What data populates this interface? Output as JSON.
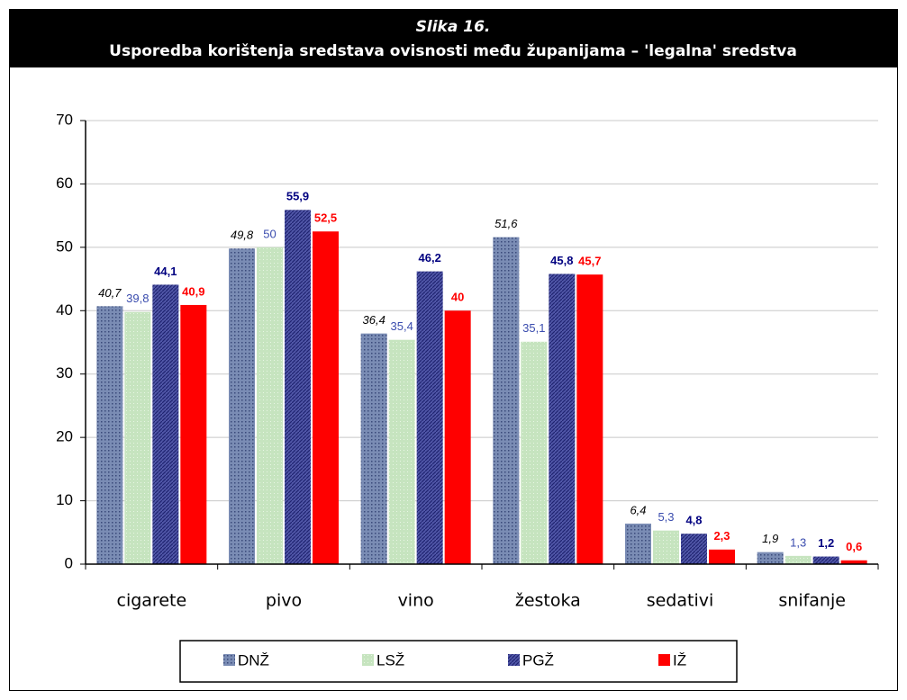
{
  "chart_data": {
    "type": "bar",
    "title": "Slika 16.",
    "subtitle": "Usporedba korištenja sredstava ovisnosti među županijama – 'legalna' sredstva",
    "categories": [
      "cigarete",
      "pivo",
      "vino",
      "žestoka",
      "sedativi",
      "snifanje"
    ],
    "series": [
      {
        "name": "DNŽ",
        "color": "#7a8cb4",
        "values": [
          40.7,
          49.8,
          36.4,
          51.6,
          6.4,
          1.9
        ],
        "value_labels": [
          "40,7",
          "49,8",
          "36,4",
          "51,6",
          "6,4",
          "1,9"
        ]
      },
      {
        "name": "LSŽ",
        "color": "#c6e4bf",
        "values": [
          39.8,
          50,
          35.4,
          35.1,
          5.3,
          1.3
        ],
        "value_labels": [
          "39,8",
          "50",
          "35,4",
          "35,1",
          "5,3",
          "1,3"
        ]
      },
      {
        "name": "PGŽ",
        "color": "#5157a8",
        "values": [
          44.1,
          55.9,
          46.2,
          45.8,
          4.8,
          1.2
        ],
        "value_labels": [
          "44,1",
          "55,9",
          "46,2",
          "45,8",
          "4,8",
          "1,2"
        ]
      },
      {
        "name": "IŽ",
        "color": "#ff0000",
        "values": [
          40.9,
          52.5,
          40,
          45.7,
          2.3,
          0.6
        ],
        "value_labels": [
          "40,9",
          "52,5",
          "40",
          "45,7",
          "2,3",
          "0,6"
        ]
      }
    ],
    "ylim": [
      0,
      70
    ],
    "yticks": [
      0,
      10,
      20,
      30,
      40,
      50,
      60,
      70
    ],
    "grid": true,
    "legend": "bottom"
  }
}
